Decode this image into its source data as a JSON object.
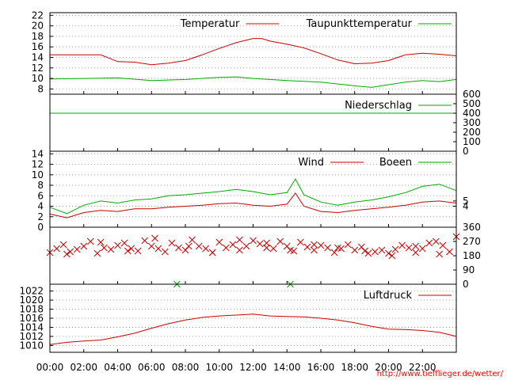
{
  "chart_data": {
    "type": "line",
    "x_ticks": [
      "00:00",
      "02:00",
      "04:00",
      "06:00",
      "08:00",
      "10:00",
      "12:00",
      "14:00",
      "16:00",
      "18:00",
      "20:00",
      "22:00"
    ],
    "source": "http://www.tiefflieger.de/wetter/",
    "panels": [
      {
        "id": "temperature",
        "ylim": [
          7,
          22.5
        ],
        "y_ticks_left": [
          "8",
          "10",
          "12",
          "14",
          "16",
          "18",
          "20",
          "22"
        ],
        "y_ticks_right": [],
        "grid": true,
        "legend_placement": "top-right",
        "series": [
          {
            "name": "Temperatur",
            "color": "#cc0000",
            "x": [
              0,
              2,
              3,
              4,
              5,
              6,
              7,
              8,
              9,
              10,
              11,
              12,
              12.5,
              13,
              14,
              15,
              16,
              17,
              18,
              19,
              20,
              21,
              22,
              23,
              24
            ],
            "y": [
              14.5,
              14.5,
              14.5,
              13.2,
              13.1,
              12.6,
              12.9,
              13.4,
              14.5,
              15.7,
              16.8,
              17.6,
              17.6,
              17.1,
              16.5,
              15.8,
              14.7,
              13.5,
              12.8,
              12.9,
              13.4,
              14.5,
              14.8,
              14.6,
              14.3
            ]
          },
          {
            "name": "Taupunkttemperatur",
            "color": "#00aa00",
            "x": [
              0,
              2,
              4,
              6,
              8,
              10,
              11,
              12,
              13,
              14,
              16,
              18,
              19,
              20,
              21,
              22,
              23,
              24
            ],
            "y": [
              9.9,
              10.0,
              10.1,
              9.6,
              9.8,
              10.2,
              10.3,
              10.0,
              9.8,
              9.6,
              9.3,
              8.6,
              8.3,
              8.8,
              9.3,
              9.6,
              9.4,
              9.8
            ]
          }
        ]
      },
      {
        "id": "precipitation",
        "ylim": [
          0,
          600
        ],
        "y_ticks_left": [],
        "y_ticks_right": [
          "0",
          "100",
          "200",
          "300",
          "400",
          "500",
          "600"
        ],
        "grid": false,
        "legend_placement": "top-right",
        "series": [
          {
            "name": "Niederschlag",
            "color": "#00aa00",
            "x": [
              0,
              24
            ],
            "y": [
              400,
              400
            ]
          }
        ]
      },
      {
        "id": "wind",
        "ylim": [
          0,
          14.5
        ],
        "y_ticks_left": [
          "0",
          "2",
          "4",
          "6",
          "8",
          "10",
          "12",
          "14"
        ],
        "y_ticks_right": [
          "4",
          "5"
        ],
        "grid": true,
        "legend_placement": "top-right",
        "series": [
          {
            "name": "Wind",
            "color": "#cc0000",
            "x": [
              0,
              1,
              2,
              3,
              4,
              5,
              6,
              7,
              8,
              9,
              10,
              11,
              12,
              13,
              14,
              14.5,
              15,
              16,
              17,
              18,
              19,
              20,
              21,
              22,
              23,
              24
            ],
            "y": [
              2.5,
              1.8,
              2.8,
              3.2,
              3.0,
              3.5,
              3.5,
              3.8,
              4.0,
              4.2,
              4.5,
              4.6,
              4.2,
              4.0,
              4.4,
              6.5,
              4.0,
              3.0,
              2.8,
              3.2,
              3.5,
              3.8,
              4.2,
              4.8,
              5.0,
              4.6
            ]
          },
          {
            "name": "Boeen",
            "color": "#00aa00",
            "x": [
              0,
              1,
              2,
              3,
              4,
              5,
              6,
              7,
              8,
              9,
              10,
              11,
              12,
              13,
              14,
              14.5,
              15,
              16,
              17,
              18,
              19,
              20,
              21,
              22,
              23,
              24
            ],
            "y": [
              3.8,
              2.6,
              4.2,
              5.0,
              4.6,
              5.2,
              5.4,
              6.0,
              6.2,
              6.5,
              6.8,
              7.2,
              6.8,
              6.2,
              6.6,
              9.2,
              6.2,
              4.8,
              4.2,
              4.8,
              5.2,
              5.8,
              6.6,
              7.8,
              8.2,
              7.0
            ]
          }
        ]
      },
      {
        "id": "wind-direction",
        "ylim": [
          0,
          360
        ],
        "y_ticks_left": [],
        "y_ticks_right": [
          "0",
          "90",
          "180",
          "270",
          "360"
        ],
        "grid": false,
        "legend_placement": "",
        "marker": "x",
        "series": [
          {
            "name": "",
            "color": "#cc0000",
            "x": [
              0,
              0.4,
              0.8,
              1.2,
              1.6,
              2,
              2.4,
              2.8,
              3.2,
              3.6,
              4,
              4.4,
              4.8,
              5.2,
              5.6,
              6,
              6.4,
              6.8,
              7.2,
              7.6,
              8,
              8.4,
              8.8,
              9.2,
              9.6,
              10,
              10.4,
              10.8,
              11.2,
              11.6,
              12,
              12.4,
              12.8,
              13.2,
              13.6,
              14,
              14.4,
              14.8,
              15.2,
              15.6,
              16,
              16.4,
              16.8,
              17.2,
              17.6,
              18,
              18.4,
              18.8,
              19.2,
              19.6,
              20,
              20.4,
              20.8,
              21.2,
              21.6,
              22,
              22.4,
              22.8,
              23.2,
              23.6,
              24
            ],
            "y": [
              200,
              225,
              250,
              205,
              220,
              240,
              270,
              195,
              230,
              220,
              245,
              260,
              225,
              210,
              275,
              240,
              225,
              205,
              260,
              230,
              215,
              280,
              240,
              225,
              200,
              265,
              230,
              250,
              215,
              240,
              275,
              255,
              230,
              225,
              270,
              240,
              210,
              265,
              235,
              215,
              245,
              230,
              200,
              225,
              250,
              215,
              235,
              195,
              205,
              215,
              195,
              220,
              245,
              230,
              200,
              225,
              260,
              270,
              245,
              205,
              300
            ]
          },
          {
            "name": "",
            "color": "#cc0000",
            "x": [
              1.0,
              3.0,
              4.6,
              6.2,
              8.2,
              9.6,
              11.2,
              12.8,
              14.2,
              15.6,
              17.0,
              18.6,
              20.2,
              21.6,
              23.0
            ],
            "y": [
              190,
              265,
              210,
              290,
              240,
              200,
              280,
              260,
              215,
              250,
              230,
              210,
              180,
              240,
              190
            ]
          },
          {
            "name": "",
            "color": "#00aa00",
            "x": [
              7.5,
              14.2
            ],
            "y": [
              0,
              0
            ]
          }
        ]
      },
      {
        "id": "pressure",
        "ylim": [
          1008.5,
          1023.5
        ],
        "y_ticks_left": [
          "1010",
          "1012",
          "1014",
          "1016",
          "1018",
          "1020",
          "1022"
        ],
        "y_ticks_right": [],
        "grid": true,
        "legend_placement": "top-right",
        "series": [
          {
            "name": "Luftdruck",
            "color": "#cc0000",
            "x": [
              0,
              1,
              2,
              3,
              4,
              5,
              6,
              7,
              8,
              9,
              10,
              11,
              12,
              13,
              14,
              15,
              16,
              17,
              18,
              19,
              20,
              21,
              22,
              23,
              24
            ],
            "y": [
              1010.2,
              1010.7,
              1011.0,
              1011.2,
              1011.9,
              1012.7,
              1013.8,
              1014.8,
              1015.6,
              1016.2,
              1016.5,
              1016.7,
              1016.9,
              1016.5,
              1016.4,
              1016.3,
              1016.0,
              1015.6,
              1015.0,
              1014.2,
              1013.6,
              1013.5,
              1013.3,
              1012.9,
              1012.0
            ]
          }
        ]
      }
    ]
  }
}
